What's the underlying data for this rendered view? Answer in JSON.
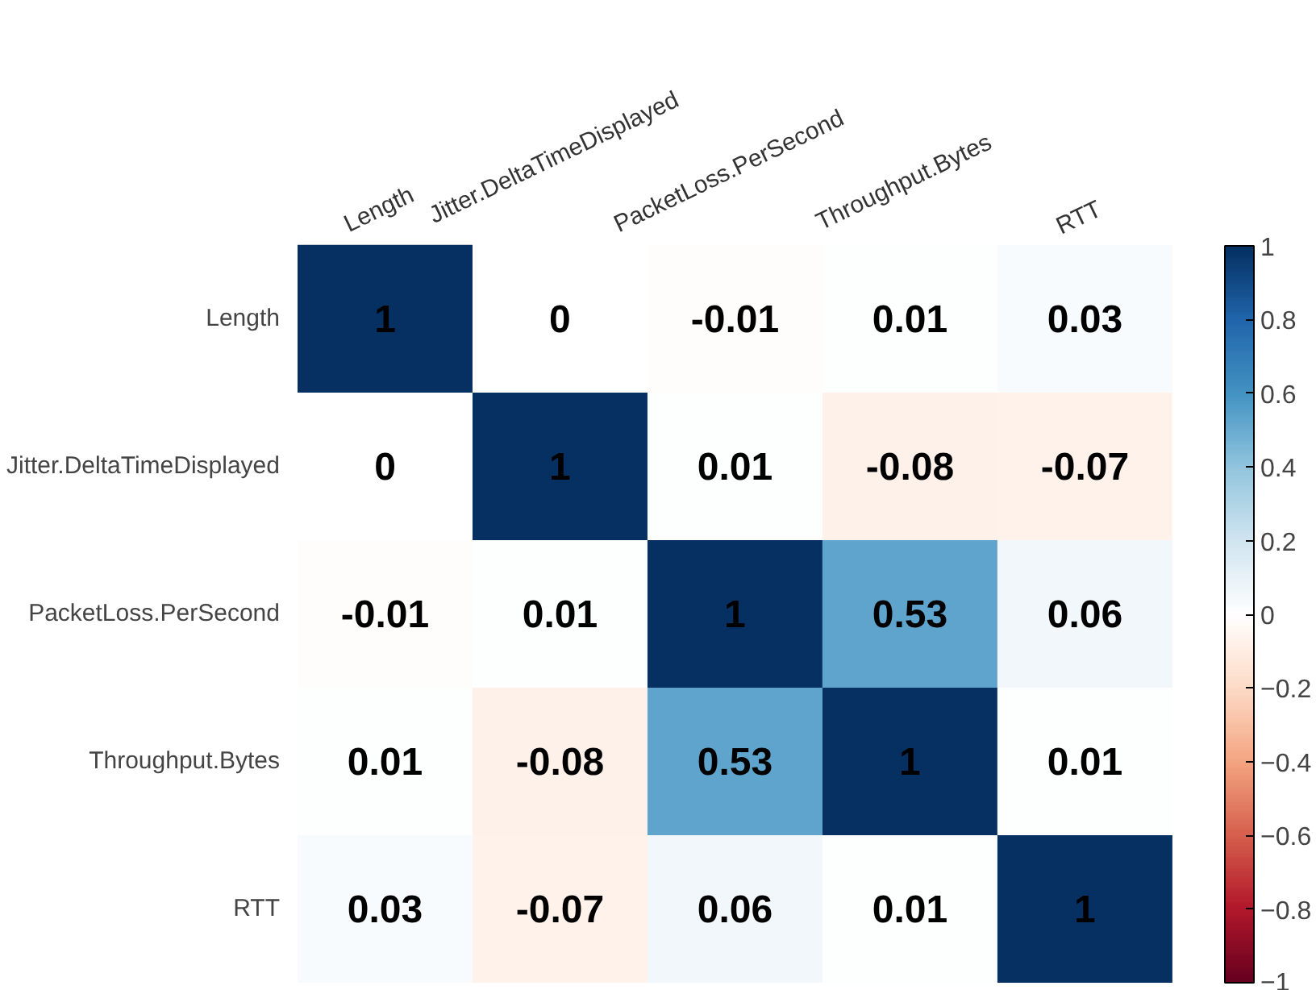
{
  "chart_data": {
    "type": "heatmap",
    "categories": [
      "Length",
      "Jitter.DeltaTimeDisplayed",
      "PacketLoss.PerSecond",
      "Throughput.Bytes",
      "RTT"
    ],
    "y_categories": [
      "Length",
      "Jitter.DeltaTimeDisplayed",
      "PacketLoss.PerSecond",
      "Throughput.Bytes",
      "RTT"
    ],
    "cells": [
      [
        1,
        0,
        -0.01,
        0.01,
        0.03
      ],
      [
        0,
        1,
        0.01,
        -0.08,
        -0.07
      ],
      [
        -0.01,
        0.01,
        1,
        0.53,
        0.06
      ],
      [
        0.01,
        -0.08,
        0.53,
        1,
        0.01
      ],
      [
        0.03,
        -0.07,
        0.06,
        0.01,
        1
      ]
    ],
    "data_labels": true,
    "clim": [
      -1,
      1
    ],
    "cticks": [
      -1,
      -0.8,
      -0.6,
      -0.4,
      -0.2,
      0,
      0.2,
      0.4,
      0.6,
      0.8,
      1
    ],
    "grid": false
  }
}
